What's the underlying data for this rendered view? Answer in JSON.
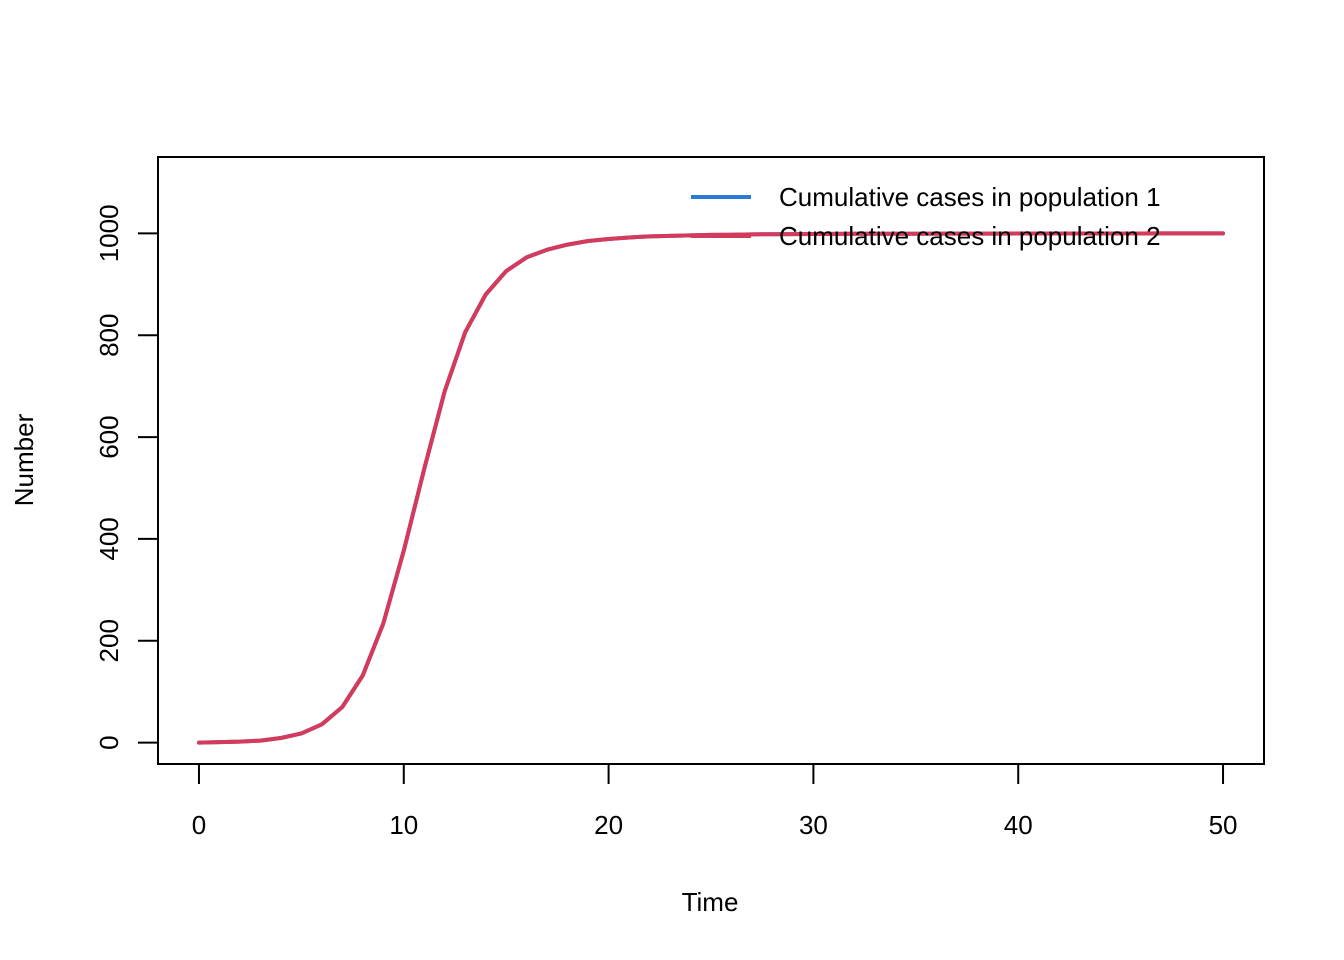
{
  "chart_data": {
    "type": "line",
    "title": "",
    "xlabel": "Time",
    "ylabel": "Number",
    "xlim": [
      -2,
      52
    ],
    "ylim": [
      -42,
      1150
    ],
    "x_ticks": [
      0,
      10,
      20,
      30,
      40,
      50
    ],
    "y_ticks": [
      0,
      200,
      400,
      600,
      800,
      1000
    ],
    "grid": false,
    "legend_position": "top-right",
    "series": [
      {
        "name": "Cumulative cases in population 1",
        "color": "#2A7BD6",
        "x": [
          0,
          1,
          2,
          3,
          4,
          5,
          6,
          7,
          8,
          9,
          10,
          11,
          12,
          13,
          14,
          15,
          16,
          17,
          18,
          19,
          20,
          21,
          22,
          23,
          24,
          25,
          26,
          27,
          28,
          29,
          30,
          31,
          32,
          33,
          34,
          35,
          36,
          37,
          38,
          39,
          40,
          41,
          42,
          43,
          44,
          45,
          46,
          47,
          48,
          49,
          50
        ],
        "y": [
          0,
          1,
          2,
          4,
          9,
          18,
          36,
          70,
          132,
          234,
          377,
          538,
          690,
          806,
          880,
          926,
          953,
          968,
          978,
          985,
          989,
          992,
          994,
          995,
          996,
          997,
          997.5,
          998,
          998.3,
          998.6,
          998.8,
          999,
          999.1,
          999.2,
          999.3,
          999.4,
          999.5,
          999.5,
          999.6,
          999.6,
          999.7,
          999.7,
          999.7,
          999.8,
          999.8,
          999.8,
          999.8,
          999.9,
          999.9,
          999.9,
          1000
        ]
      },
      {
        "name": "Cumulative cases in population 2",
        "color": "#D63A5A",
        "x": [
          0,
          1,
          2,
          3,
          4,
          5,
          6,
          7,
          8,
          9,
          10,
          11,
          12,
          13,
          14,
          15,
          16,
          17,
          18,
          19,
          20,
          21,
          22,
          23,
          24,
          25,
          26,
          27,
          28,
          29,
          30,
          31,
          32,
          33,
          34,
          35,
          36,
          37,
          38,
          39,
          40,
          41,
          42,
          43,
          44,
          45,
          46,
          47,
          48,
          49,
          50
        ],
        "y": [
          0,
          1,
          2,
          4,
          9,
          18,
          36,
          70,
          132,
          234,
          377,
          538,
          690,
          806,
          880,
          926,
          953,
          968,
          978,
          985,
          989,
          992,
          994,
          995,
          996,
          997,
          997.5,
          998,
          998.3,
          998.6,
          998.8,
          999,
          999.1,
          999.2,
          999.3,
          999.4,
          999.5,
          999.5,
          999.6,
          999.6,
          999.7,
          999.7,
          999.7,
          999.8,
          999.8,
          999.8,
          999.8,
          999.9,
          999.9,
          999.9,
          1000
        ]
      }
    ]
  }
}
